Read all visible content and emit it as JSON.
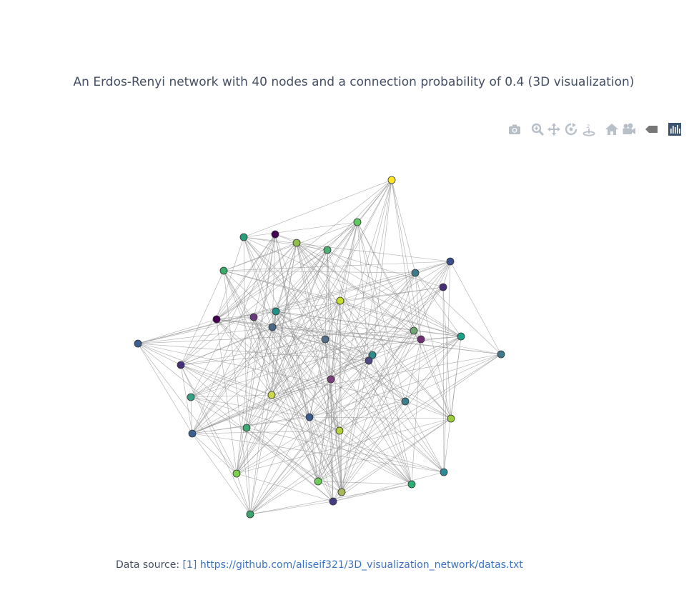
{
  "title": "An Erdos-Renyi network with 40 nodes and a connection probability of 0.4 (3D visualization)",
  "modebar": {
    "icons": [
      "camera-icon",
      "zoom-icon",
      "pan-icon",
      "orbit-rotation-icon",
      "turntable-rotation-icon",
      "home-icon",
      "reset-camera-icon",
      "hover-toggle-icon",
      "plotly-logo-icon"
    ],
    "icon_color": "#b7bfc9",
    "logo_color": "#3b5571"
  },
  "graph": {
    "node_count": 40,
    "edge_color": "#8f8f8f",
    "node_outline": "#333333",
    "colorscale": "viridis"
  },
  "footer": {
    "label": "Data source: ",
    "link_text": "[1] https://github.com/aliseif321/3D_visualization_network/datas.txt"
  }
}
